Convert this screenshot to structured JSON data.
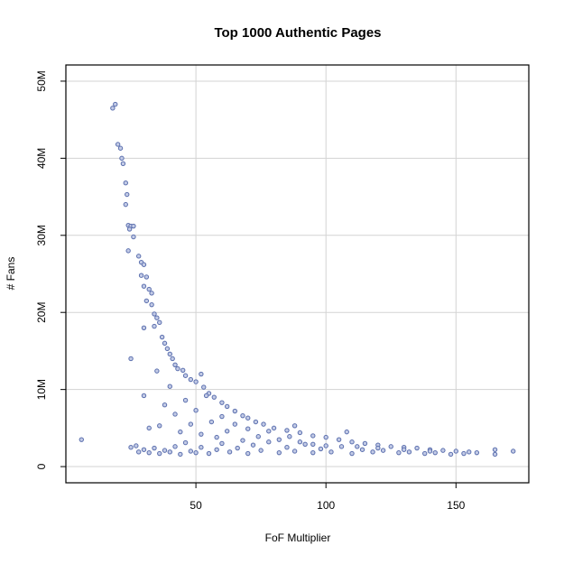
{
  "chart_data": {
    "type": "scatter",
    "title": "Top 1000 Authentic Pages",
    "x_label": "FoF Multiplier",
    "y_label": "# Fans",
    "color": "#5b6fae",
    "grid": true,
    "xlim": [
      0,
      178
    ],
    "ylim": [
      -2100000,
      52100000
    ],
    "xticks": [
      50,
      100,
      150
    ],
    "yticks": [
      {
        "value": 0,
        "label": "0"
      },
      {
        "value": 10000000,
        "label": "10M"
      },
      {
        "value": 20000000,
        "label": "20M"
      },
      {
        "value": 30000000,
        "label": "30M"
      },
      {
        "value": 40000000,
        "label": "40M"
      },
      {
        "value": 50000000,
        "label": "50M"
      }
    ],
    "x": [
      6,
      18,
      19,
      20,
      21,
      21.5,
      22,
      23,
      23.5,
      24,
      23,
      25,
      24.5,
      26,
      26,
      24,
      25,
      28,
      29,
      30,
      29,
      31,
      30,
      32,
      33,
      31,
      33,
      34,
      35,
      36,
      34,
      30,
      37,
      38,
      39,
      40,
      41,
      42,
      43,
      45,
      46,
      48,
      50,
      52,
      53,
      55,
      57,
      60,
      62,
      65,
      68,
      70,
      73,
      76,
      80,
      85,
      88,
      90,
      95,
      100,
      105,
      110,
      115,
      120,
      125,
      130,
      135,
      140,
      145,
      150,
      155,
      158,
      165,
      172,
      165,
      25,
      27,
      28,
      30,
      32,
      34,
      36,
      38,
      40,
      42,
      44,
      46,
      48,
      50,
      52,
      55,
      58,
      60,
      63,
      66,
      70,
      72,
      75,
      78,
      82,
      85,
      88,
      92,
      95,
      98,
      102,
      106,
      110,
      114,
      118,
      122,
      128,
      132,
      138,
      142,
      148,
      153,
      30,
      32,
      35,
      36,
      38,
      40,
      42,
      44,
      46,
      48,
      50,
      52,
      54,
      56,
      58,
      60,
      62,
      65,
      68,
      70,
      74,
      78,
      82,
      86,
      90,
      95,
      100,
      108,
      112,
      120,
      130,
      140
    ],
    "values": [
      3500000,
      46500000,
      47000000,
      41800000,
      41300000,
      40000000,
      39300000,
      36800000,
      35300000,
      31300000,
      34000000,
      31200000,
      30800000,
      31200000,
      29800000,
      28000000,
      14000000,
      27300000,
      26500000,
      26200000,
      24800000,
      24600000,
      23400000,
      23000000,
      22500000,
      21500000,
      21000000,
      19800000,
      19300000,
      18700000,
      18200000,
      18000000,
      16800000,
      16000000,
      15300000,
      14600000,
      14000000,
      13200000,
      12700000,
      12500000,
      11800000,
      11300000,
      11000000,
      12000000,
      10300000,
      9500000,
      9000000,
      8300000,
      7800000,
      7200000,
      6600000,
      6300000,
      5800000,
      5500000,
      5000000,
      4700000,
      5300000,
      4400000,
      4000000,
      3800000,
      3500000,
      3200000,
      3000000,
      2800000,
      2600000,
      2500000,
      2400000,
      2200000,
      2100000,
      2000000,
      1900000,
      1800000,
      2200000,
      2000000,
      1600000,
      2500000,
      2700000,
      1900000,
      2200000,
      1800000,
      2400000,
      1700000,
      2100000,
      1900000,
      2600000,
      1600000,
      3100000,
      2000000,
      1800000,
      2500000,
      1700000,
      2200000,
      3000000,
      1900000,
      2400000,
      1700000,
      2800000,
      2100000,
      3200000,
      1800000,
      2500000,
      2000000,
      2900000,
      1800000,
      2300000,
      1900000,
      2600000,
      1700000,
      2200000,
      1900000,
      2100000,
      1800000,
      1900000,
      1700000,
      1800000,
      1600000,
      1700000,
      9200000,
      5000000,
      12400000,
      5300000,
      8000000,
      10400000,
      6800000,
      4500000,
      8600000,
      5500000,
      7300000,
      4200000,
      9200000,
      5800000,
      3800000,
      6500000,
      4600000,
      5500000,
      3400000,
      4900000,
      3900000,
      4600000,
      3500000,
      3900000,
      3200000,
      2900000,
      2700000,
      4500000,
      2600000,
      2400000,
      2200000,
      2000000
    ]
  }
}
